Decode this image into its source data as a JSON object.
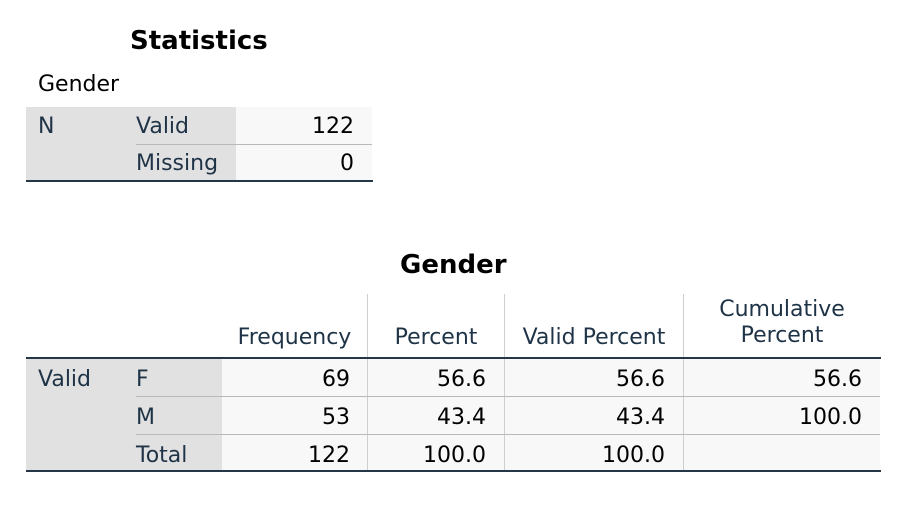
{
  "statistics": {
    "title": "Statistics",
    "subtitle": "Gender",
    "row_group": "N",
    "rows": [
      {
        "label": "Valid",
        "value": "122"
      },
      {
        "label": "Missing",
        "value": "0"
      }
    ]
  },
  "frequency": {
    "title": "Gender",
    "columns": {
      "frequency": "Frequency",
      "percent": "Percent",
      "valid_percent": "Valid Percent",
      "cumulative_line1": "Cumulative",
      "cumulative_line2": "Percent"
    },
    "row_group": "Valid",
    "rows": [
      {
        "label": "F",
        "frequency": "69",
        "percent": "56.6",
        "valid_percent": "56.6",
        "cumulative": "56.6"
      },
      {
        "label": "M",
        "frequency": "53",
        "percent": "43.4",
        "valid_percent": "43.4",
        "cumulative": "100.0"
      },
      {
        "label": "Total",
        "frequency": "122",
        "percent": "100.0",
        "valid_percent": "100.0",
        "cumulative": ""
      }
    ]
  }
}
